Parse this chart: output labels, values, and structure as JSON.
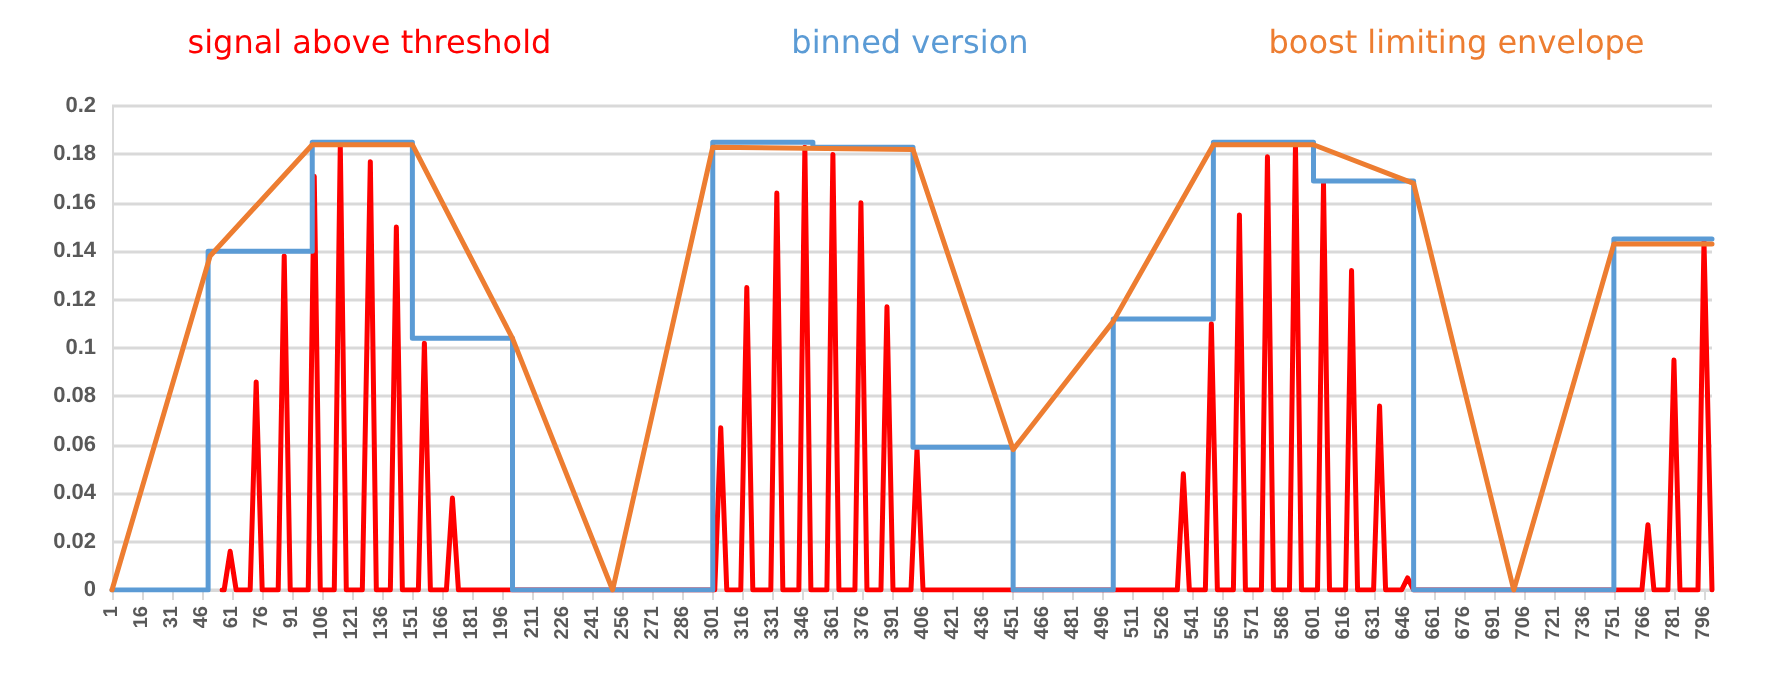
{
  "chart_data": {
    "type": "line",
    "x": [
      1,
      50,
      101,
      151,
      201,
      251,
      301,
      401,
      451,
      501,
      551,
      601,
      651,
      701,
      751,
      800
    ],
    "series": [
      {
        "name": "signal above threshold",
        "color": "#ff0000",
        "x": [
          56,
          57,
          60,
          63,
          70,
          73,
          76,
          84,
          87,
          90,
          99,
          102,
          105,
          112,
          115,
          118,
          126,
          130,
          133,
          140,
          143,
          146,
          154,
          157,
          160,
          168,
          171,
          174,
          302,
          305,
          308,
          315,
          318,
          321,
          330,
          333,
          336,
          344,
          347,
          350,
          358,
          361,
          364,
          372,
          375,
          378,
          385,
          388,
          391,
          400,
          403,
          406,
          533,
          536,
          539,
          547,
          550,
          553,
          561,
          564,
          567,
          575,
          578,
          581,
          589,
          592,
          595,
          603,
          606,
          609,
          617,
          620,
          623,
          631,
          634,
          637,
          645,
          648,
          651,
          765,
          768,
          771,
          778,
          781,
          784,
          793,
          796,
          800
        ],
        "values": [
          0,
          0,
          0.016,
          0,
          0,
          0.086,
          0,
          0,
          0.138,
          0,
          0,
          0.171,
          0,
          0,
          0.184,
          0,
          0,
          0.177,
          0,
          0,
          0.15,
          0,
          0,
          0.102,
          0,
          0,
          0.038,
          0,
          0,
          0.067,
          0,
          0,
          0.125,
          0,
          0,
          0.164,
          0,
          0,
          0.183,
          0,
          0,
          0.18,
          0,
          0,
          0.16,
          0,
          0,
          0.117,
          0,
          0,
          0.058,
          0,
          0,
          0.048,
          0,
          0,
          0.11,
          0,
          0,
          0.155,
          0,
          0,
          0.179,
          0,
          0,
          0.184,
          0,
          0,
          0.168,
          0,
          0,
          0.132,
          0,
          0,
          0.076,
          0,
          0,
          0.005,
          0,
          0,
          0.027,
          0,
          0,
          0.095,
          0,
          0,
          0.144,
          0
        ]
      },
      {
        "name": "binned version",
        "type": "step",
        "color": "#5b9bd5",
        "x": [
          1,
          49,
          101,
          151,
          201,
          301,
          351,
          401,
          451,
          501,
          551,
          601,
          651,
          751,
          800
        ],
        "values": [
          0,
          0.14,
          0.185,
          0.104,
          0,
          0.185,
          0.183,
          0.059,
          0,
          0.112,
          0.185,
          0.169,
          0,
          0.145,
          0.145
        ]
      },
      {
        "name": "boost limiting envelope",
        "color": "#ed7d31",
        "values": [
          0,
          0.138,
          0.184,
          0.184,
          0.104,
          0,
          0.183,
          0.182,
          0.058,
          0.111,
          0.184,
          0.184,
          0.168,
          0,
          0.143,
          0.143
        ]
      }
    ],
    "xlim": [
      1,
      800
    ],
    "xticks": [
      1,
      16,
      31,
      46,
      61,
      76,
      91,
      106,
      121,
      136,
      151,
      166,
      181,
      196,
      211,
      226,
      241,
      256,
      271,
      286,
      301,
      316,
      331,
      346,
      361,
      376,
      391,
      406,
      421,
      436,
      451,
      466,
      481,
      496,
      511,
      526,
      541,
      556,
      571,
      586,
      601,
      616,
      631,
      646,
      661,
      676,
      691,
      706,
      721,
      736,
      751,
      766,
      781,
      796
    ],
    "ylim": [
      0,
      0.2
    ],
    "yticks": [
      0,
      0.02,
      0.04,
      0.06,
      0.08,
      0.1,
      0.12,
      0.14,
      0.16,
      0.18,
      0.2
    ],
    "grid": "y",
    "legend": "top",
    "marker": "none",
    "line_style": "solid"
  }
}
